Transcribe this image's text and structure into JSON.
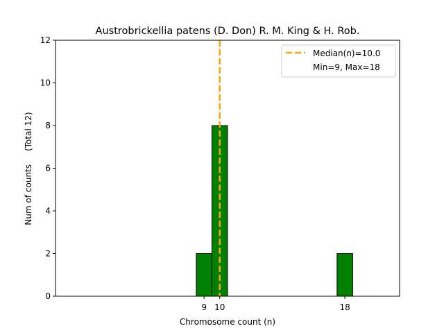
{
  "chart_data": {
    "type": "bar",
    "title": "Austrobrickellia patens (D. Don) R. M. King & H. Rob.",
    "xlabel": "Chromosome count (n)",
    "ylabel": "Num of counts     (Total 12)",
    "xlim": [
      -0.5,
      21.5
    ],
    "ylim": [
      0,
      12
    ],
    "xticks": [
      9,
      10,
      18
    ],
    "yticks": [
      0,
      2,
      4,
      6,
      8,
      10,
      12
    ],
    "bin_width": 1,
    "bars": [
      {
        "x": 9,
        "count": 2
      },
      {
        "x": 10,
        "count": 8
      },
      {
        "x": 18,
        "count": 2
      }
    ],
    "median": 10.0,
    "bar_color": "#008000",
    "median_color": "#FFA500",
    "legend": {
      "position": "top-right",
      "entries": [
        "Median(n)=10.0",
        "Min=9, Max=18"
      ]
    }
  }
}
